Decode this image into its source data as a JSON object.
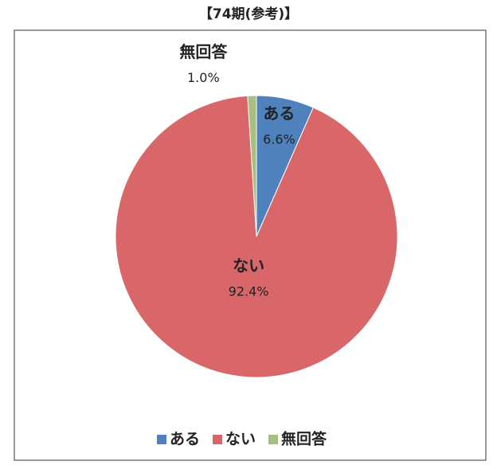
{
  "chart_data": {
    "type": "pie",
    "title": "【74期(参考)】",
    "categories": [
      "ある",
      "ない",
      "無回答"
    ],
    "values": [
      6.6,
      92.4,
      1.0
    ],
    "value_labels": [
      "6.6%",
      "92.4%",
      "1.0%"
    ],
    "colors": [
      "#4f81bd",
      "#d9676a",
      "#a9bf7f"
    ],
    "legend": "bottom"
  }
}
